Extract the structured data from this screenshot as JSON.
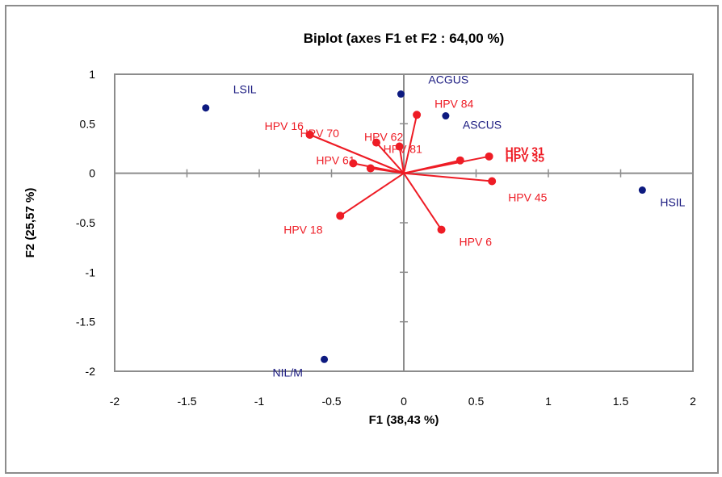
{
  "chart_data": {
    "type": "scatter",
    "subtype": "biplot",
    "title": "Biplot (axes F1 et F2 : 64,00 %)",
    "xlabel": "F1 (38,43 %)",
    "ylabel": "F2 (25,57 %)",
    "xlim": [
      -2,
      2
    ],
    "ylim": [
      -2,
      1
    ],
    "xticks": [
      "-2",
      "-1.5",
      "-1",
      "-0.5",
      "0",
      "0.5",
      "1",
      "1.5",
      "2"
    ],
    "yticks": [
      "1",
      "0.5",
      "0",
      "-0.5",
      "-1",
      "-1.5",
      "-2"
    ],
    "xtick_values": [
      -2,
      -1.5,
      -1,
      -0.5,
      0,
      0.5,
      1,
      1.5,
      2
    ],
    "ytick_values": [
      1,
      0.5,
      0,
      -0.5,
      -1,
      -1.5,
      -2
    ],
    "grid": false,
    "colors": {
      "observations": "#0d1a80",
      "variables": "#ee1c25",
      "axis": "#8c8c8c"
    },
    "observations": [
      {
        "label": "LSIL",
        "x": -1.37,
        "y": 0.66
      },
      {
        "label": "ACGUS",
        "x": -0.02,
        "y": 0.8
      },
      {
        "label": "ASCUS",
        "x": 0.29,
        "y": 0.58
      },
      {
        "label": "HSIL",
        "x": 1.65,
        "y": -0.17
      },
      {
        "label": "NIL/M",
        "x": -0.55,
        "y": -1.88
      }
    ],
    "variables": [
      {
        "label": "HPV 84",
        "x": 0.09,
        "y": 0.59
      },
      {
        "label": "HPV 70",
        "x": -0.65,
        "y": 0.39
      },
      {
        "label": "HPV 16",
        "x": -0.65,
        "y": 0.39
      },
      {
        "label": "HPV 62",
        "x": -0.19,
        "y": 0.31
      },
      {
        "label": "HPV 81",
        "x": -0.03,
        "y": 0.27
      },
      {
        "label": "HPV 61",
        "x": -0.35,
        "y": 0.1
      },
      {
        "label": "",
        "x": -0.23,
        "y": 0.05
      },
      {
        "label": "HPV 31",
        "x": 0.59,
        "y": 0.17
      },
      {
        "label": "HPV 35",
        "x": 0.39,
        "y": 0.13
      },
      {
        "label": "HPV 45",
        "x": 0.61,
        "y": -0.08
      },
      {
        "label": "HPV 18",
        "x": -0.44,
        "y": -0.43
      },
      {
        "label": "HPV 6",
        "x": 0.26,
        "y": -0.57
      }
    ],
    "legend": "none"
  }
}
